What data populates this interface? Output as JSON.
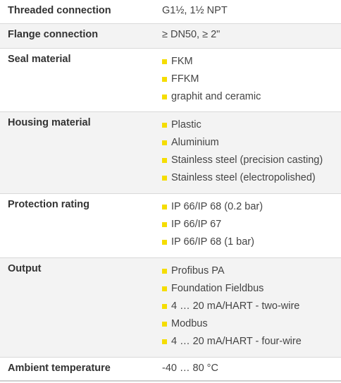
{
  "bullet_color": "#f5dd00",
  "rows": [
    {
      "label": "Threaded connection",
      "value": "G1½, 1½ NPT"
    },
    {
      "label": "Flange connection",
      "value": "≥ DN50, ≥ 2\""
    },
    {
      "label": "Seal material",
      "items": [
        "FKM",
        "FFKM",
        "graphit and ceramic"
      ]
    },
    {
      "label": "Housing material",
      "items": [
        "Plastic",
        "Aluminium",
        "Stainless steel (precision casting)",
        "Stainless steel (electropolished)"
      ]
    },
    {
      "label": "Protection rating",
      "items": [
        "IP 66/IP 68 (0.2 bar)",
        "IP 66/IP 67",
        "IP 66/IP 68 (1 bar)"
      ]
    },
    {
      "label": "Output",
      "items": [
        "Profibus PA",
        "Foundation Fieldbus",
        "4 … 20 mA/HART - two-wire",
        "Modbus",
        "4 … 20 mA/HART - four-wire"
      ]
    },
    {
      "label": "Ambient temperature",
      "value": "-40 … 80 °C"
    }
  ]
}
